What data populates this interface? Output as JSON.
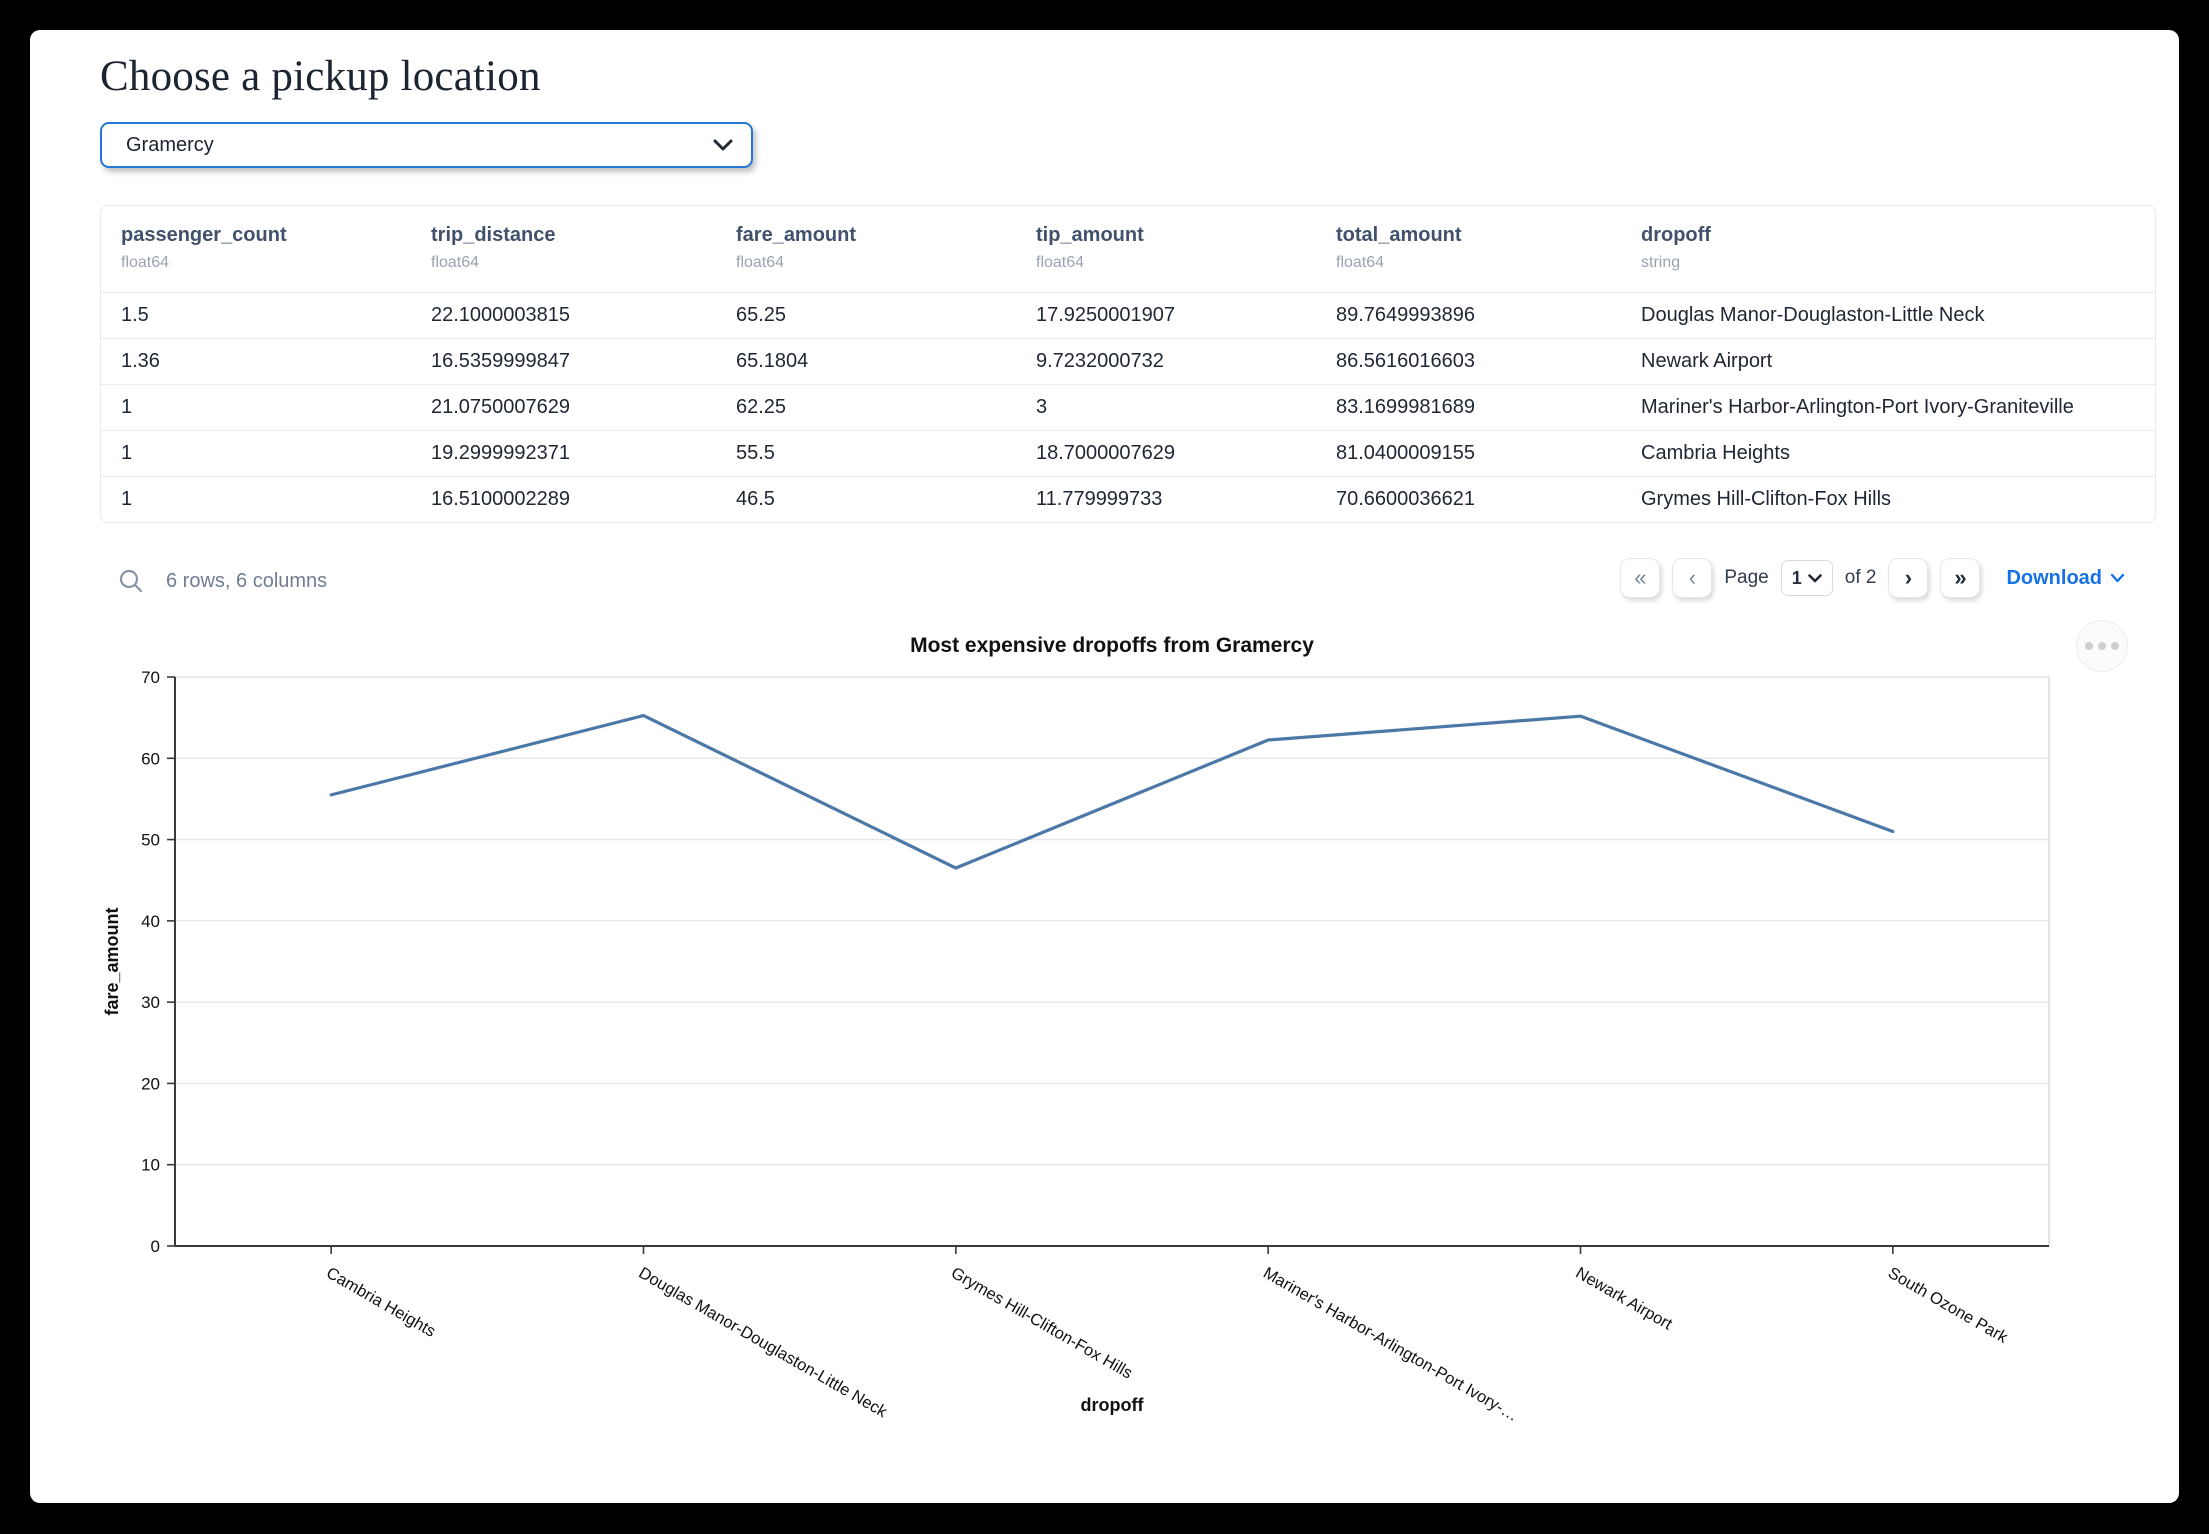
{
  "page": {
    "title": "Choose a pickup location"
  },
  "pickup_select": {
    "value": "Gramercy"
  },
  "table": {
    "columns": [
      {
        "name": "passenger_count",
        "type": "float64"
      },
      {
        "name": "trip_distance",
        "type": "float64"
      },
      {
        "name": "fare_amount",
        "type": "float64"
      },
      {
        "name": "tip_amount",
        "type": "float64"
      },
      {
        "name": "total_amount",
        "type": "float64"
      },
      {
        "name": "dropoff",
        "type": "string"
      }
    ],
    "rows": [
      [
        "1.5",
        "22.1000003815",
        "65.25",
        "17.9250001907",
        "89.7649993896",
        "Douglas Manor-Douglaston-Little Neck"
      ],
      [
        "1.36",
        "16.5359999847",
        "65.1804",
        "9.7232000732",
        "86.5616016603",
        "Newark Airport"
      ],
      [
        "1",
        "21.0750007629",
        "62.25",
        "3",
        "83.1699981689",
        "Mariner's Harbor-Arlington-Port Ivory-Graniteville"
      ],
      [
        "1",
        "19.2999992371",
        "55.5",
        "18.7000007629",
        "81.0400009155",
        "Cambria Heights"
      ],
      [
        "1",
        "16.5100002289",
        "46.5",
        "11.779999733",
        "70.6600036621",
        "Grymes Hill-Clifton-Fox Hills"
      ]
    ],
    "summary": "6 rows, 6 columns"
  },
  "pagination": {
    "first_label": "«",
    "prev_label": "‹",
    "next_label": "›",
    "last_label": "»",
    "page_label": "Page",
    "page_value": "1",
    "of_label": "of 2",
    "download_label": "Download"
  },
  "chart_data": {
    "type": "line",
    "title": "Most expensive dropoffs from Gramercy",
    "xlabel": "dropoff",
    "ylabel": "fare_amount",
    "categories": [
      "Cambria Heights",
      "Douglas Manor-Douglaston-Little Neck",
      "Grymes Hill-Clifton-Fox Hills",
      "Mariner's Harbor-Arlington-Port Ivory-…",
      "Newark Airport",
      "South Ozone Park"
    ],
    "values": [
      55.5,
      65.25,
      46.5,
      62.25,
      65.1804,
      51
    ],
    "ylim": [
      0,
      70
    ],
    "yticks": [
      0,
      10,
      20,
      30,
      40,
      50,
      60,
      70
    ],
    "grid": true,
    "legend": "none",
    "line_color": "#4c78a8"
  },
  "colors": {
    "accent": "#2478d4",
    "link": "#1673e6",
    "line": "#4c78a8",
    "grid": "#e7e7e7",
    "frame": "#d9d9d9",
    "spine": "#3a3a3a"
  }
}
